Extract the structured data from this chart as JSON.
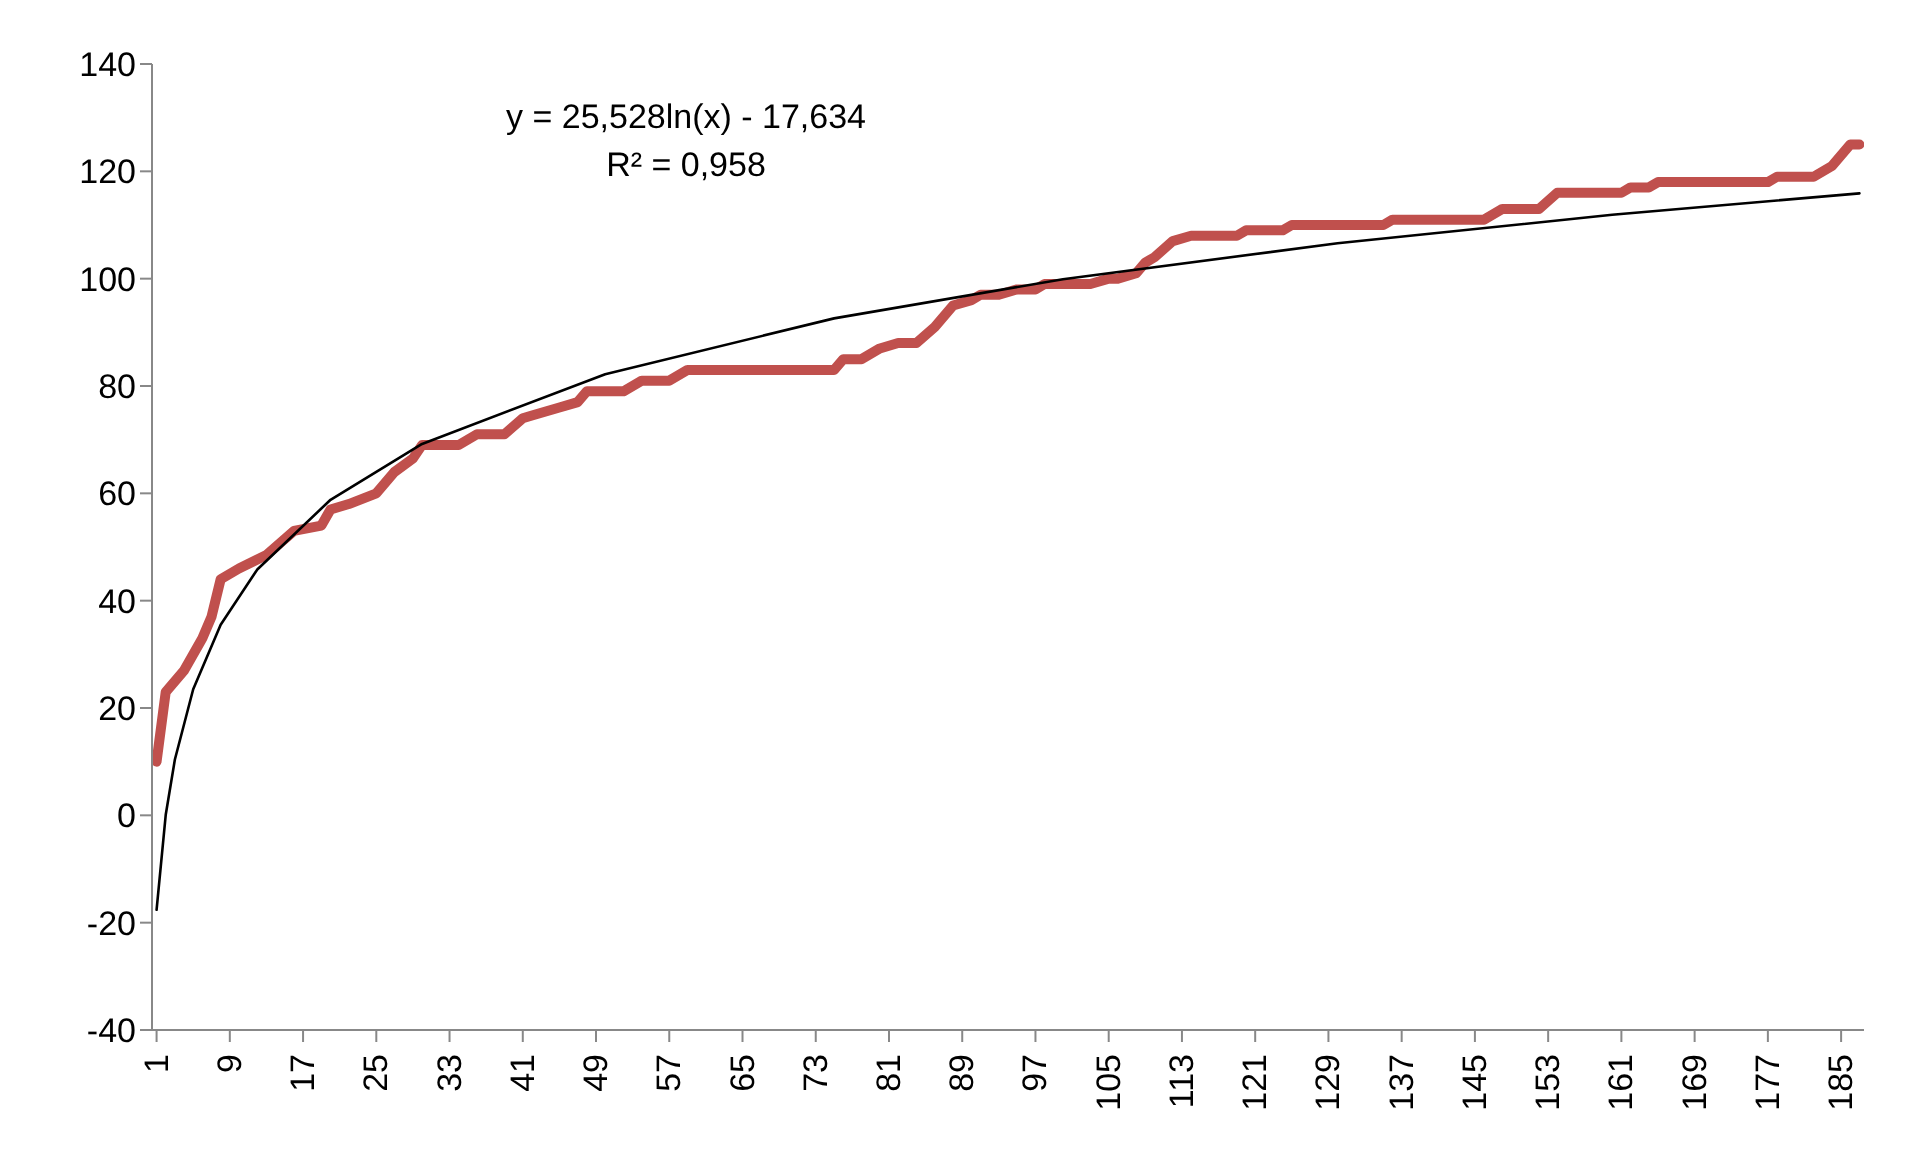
{
  "chart_data": {
    "type": "line",
    "annotations": [
      "y = 25,528ln(x) - 17,634",
      "R² = 0,958"
    ],
    "series": [
      {
        "color": "#c0504d",
        "x": [
          1,
          2,
          4,
          6,
          7,
          8,
          10,
          13,
          16,
          19,
          20,
          22,
          25,
          27,
          29,
          30,
          34,
          36,
          39,
          41,
          42,
          45,
          47,
          48,
          52,
          54,
          57,
          59,
          75,
          76,
          78,
          80,
          82,
          84,
          86,
          88,
          90,
          91,
          93,
          95,
          97,
          98,
          103,
          105,
          106,
          108,
          109,
          110,
          112,
          114,
          119,
          120,
          124,
          125,
          135,
          136,
          146,
          148,
          152,
          154,
          161,
          162,
          164,
          165,
          177,
          178,
          182,
          184,
          186,
          187
        ],
        "values": [
          10,
          23,
          27,
          33,
          37,
          44,
          46,
          48.5,
          53,
          54,
          57,
          58,
          60,
          64,
          66.5,
          69,
          69,
          71,
          71,
          74,
          74.5,
          76,
          77,
          79,
          79,
          81,
          81,
          83,
          83,
          85,
          85,
          87,
          88,
          88,
          91,
          95,
          96,
          97,
          97,
          98,
          98,
          99,
          99,
          100,
          100,
          101,
          103,
          104,
          107,
          108,
          108,
          109,
          109,
          110,
          110,
          111,
          111,
          113,
          113,
          116,
          116,
          117,
          117,
          118,
          118,
          119,
          119,
          121,
          125,
          125
        ]
      },
      {
        "type": "line",
        "color": "#000000",
        "x": [
          1,
          2,
          3,
          5,
          8,
          12,
          20,
          30,
          50,
          75,
          100,
          130,
          160,
          187
        ],
        "values": [
          -17.6,
          0.1,
          10.4,
          23.5,
          35.5,
          45.8,
          58.8,
          69.2,
          82.2,
          92.6,
          99.9,
          106.6,
          111.9,
          115.9
        ]
      }
    ],
    "xlim": [
      0.5,
      187.5
    ],
    "xticks": [
      1,
      9,
      17,
      25,
      33,
      41,
      49,
      57,
      65,
      73,
      81,
      89,
      97,
      105,
      113,
      121,
      129,
      137,
      145,
      153,
      161,
      169,
      177,
      185
    ],
    "ylim": [
      -40,
      140
    ],
    "yticks": [
      -40,
      -20,
      0,
      20,
      40,
      60,
      80,
      100,
      120,
      140
    ],
    "grid": false,
    "legend": false,
    "marker": "none"
  }
}
